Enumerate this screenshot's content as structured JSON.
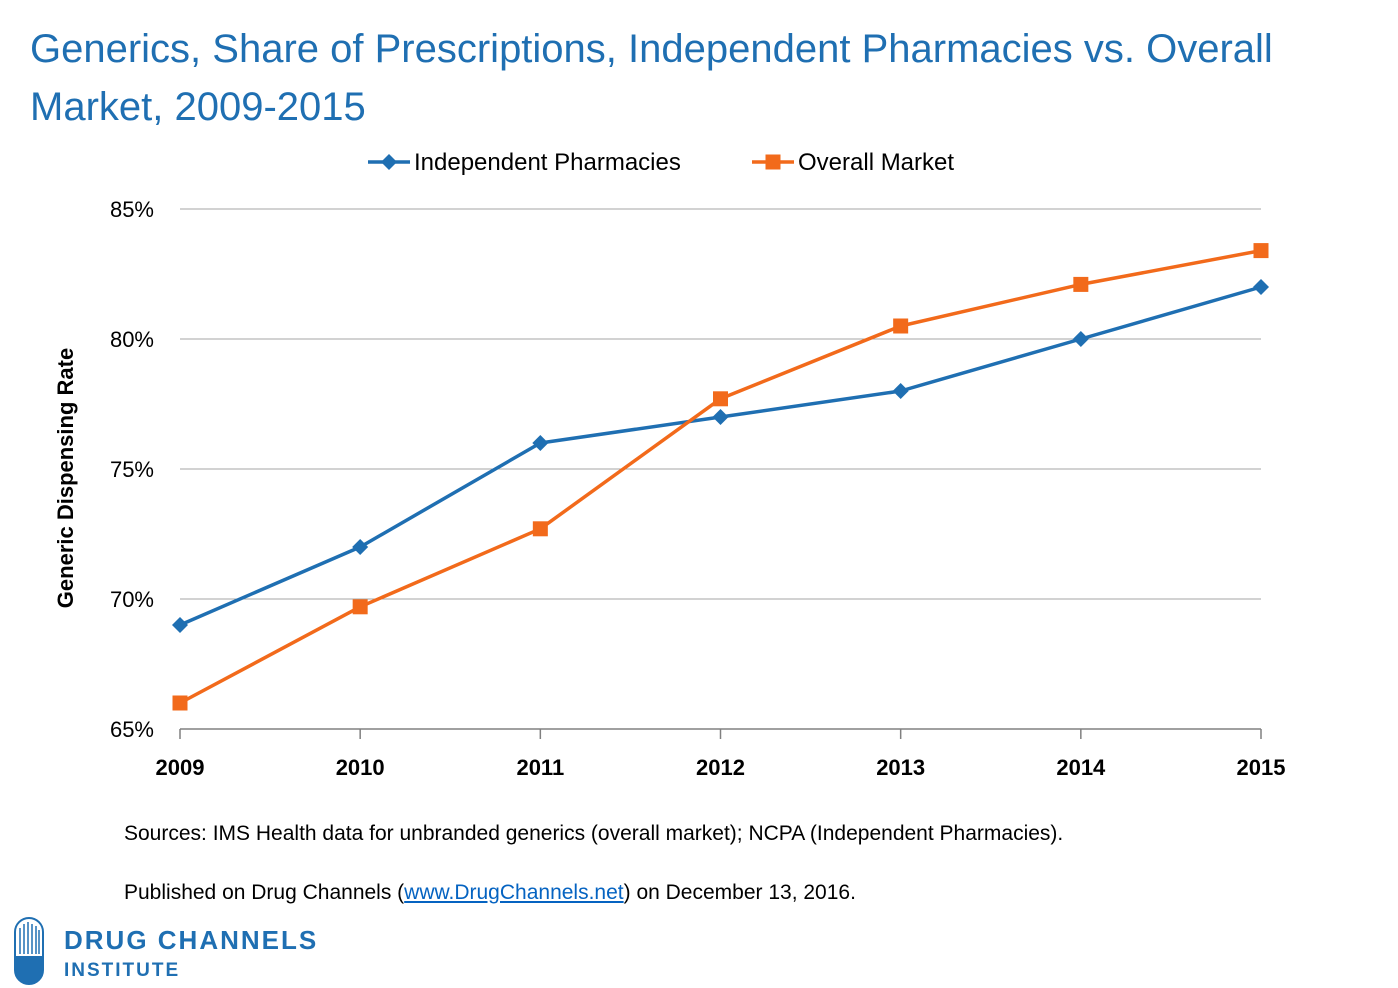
{
  "chart_data": {
    "type": "line",
    "title": "Generics, Share of Prescriptions, Independent Pharmacies vs. Overall Market, 2009-2015",
    "ylabel": "Generic Dispensing Rate",
    "xlabel": "",
    "categories": [
      "2009",
      "2010",
      "2011",
      "2012",
      "2013",
      "2014",
      "2015"
    ],
    "ylim": [
      65,
      85
    ],
    "yticks": [
      65,
      70,
      75,
      80,
      85
    ],
    "ytick_labels": [
      "65%",
      "70%",
      "75%",
      "80%",
      "85%"
    ],
    "grid": true,
    "legend_position": "top",
    "series": [
      {
        "name": "Independent Pharmacies",
        "marker": "diamond",
        "color": "#1f6fb2",
        "values": [
          69,
          72,
          76,
          77,
          78,
          80,
          82
        ]
      },
      {
        "name": "Overall Market",
        "marker": "square",
        "color": "#f26a1b",
        "values": [
          66,
          69.7,
          72.7,
          77.7,
          80.5,
          82.1,
          83.4
        ]
      }
    ]
  },
  "footer": {
    "sources": "Sources: IMS Health data for unbranded generics (overall market); NCPA (Independent Pharmacies).",
    "published_prefix": "Published on Drug Channels (",
    "published_link": "www.DrugChannels.net",
    "published_suffix": ") on December 13, 2016."
  },
  "brand": {
    "line1": "DRUG CHANNELS",
    "line2": "INSTITUTE",
    "color": "#1f6fb2",
    "icon": "drug-channels-logo-icon"
  }
}
